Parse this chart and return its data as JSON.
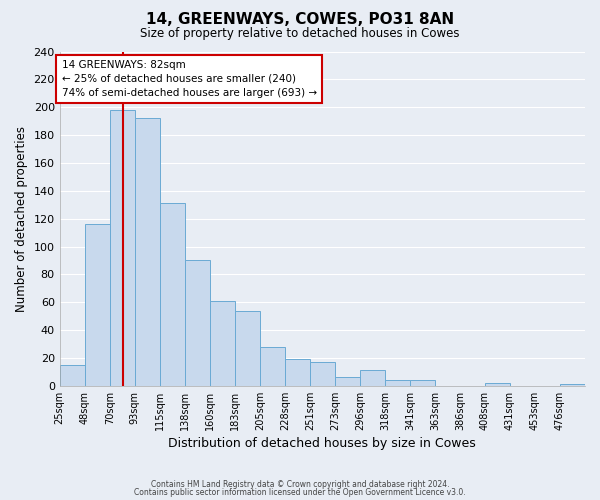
{
  "title": "14, GREENWAYS, COWES, PO31 8AN",
  "subtitle": "Size of property relative to detached houses in Cowes",
  "xlabel": "Distribution of detached houses by size in Cowes",
  "ylabel": "Number of detached properties",
  "bar_color": "#c8d9ed",
  "bar_edge_color": "#6aaad4",
  "background_color": "#e8edf4",
  "grid_color": "#ffffff",
  "bin_labels": [
    "25sqm",
    "48sqm",
    "70sqm",
    "93sqm",
    "115sqm",
    "138sqm",
    "160sqm",
    "183sqm",
    "205sqm",
    "228sqm",
    "251sqm",
    "273sqm",
    "296sqm",
    "318sqm",
    "341sqm",
    "363sqm",
    "386sqm",
    "408sqm",
    "431sqm",
    "453sqm",
    "476sqm"
  ],
  "bar_heights": [
    15,
    116,
    198,
    192,
    131,
    90,
    61,
    54,
    28,
    19,
    17,
    6,
    11,
    4,
    4,
    0,
    0,
    2,
    0,
    0,
    1
  ],
  "vline_index": 2.52,
  "ylim": [
    0,
    240
  ],
  "yticks": [
    0,
    20,
    40,
    60,
    80,
    100,
    120,
    140,
    160,
    180,
    200,
    220,
    240
  ],
  "annotation_title": "14 GREENWAYS: 82sqm",
  "annotation_line1": "← 25% of detached houses are smaller (240)",
  "annotation_line2": "74% of semi-detached houses are larger (693) →",
  "annotation_box_color": "#ffffff",
  "annotation_border_color": "#cc0000",
  "vline_color": "#cc0000",
  "footer1": "Contains HM Land Registry data © Crown copyright and database right 2024.",
  "footer2": "Contains public sector information licensed under the Open Government Licence v3.0."
}
